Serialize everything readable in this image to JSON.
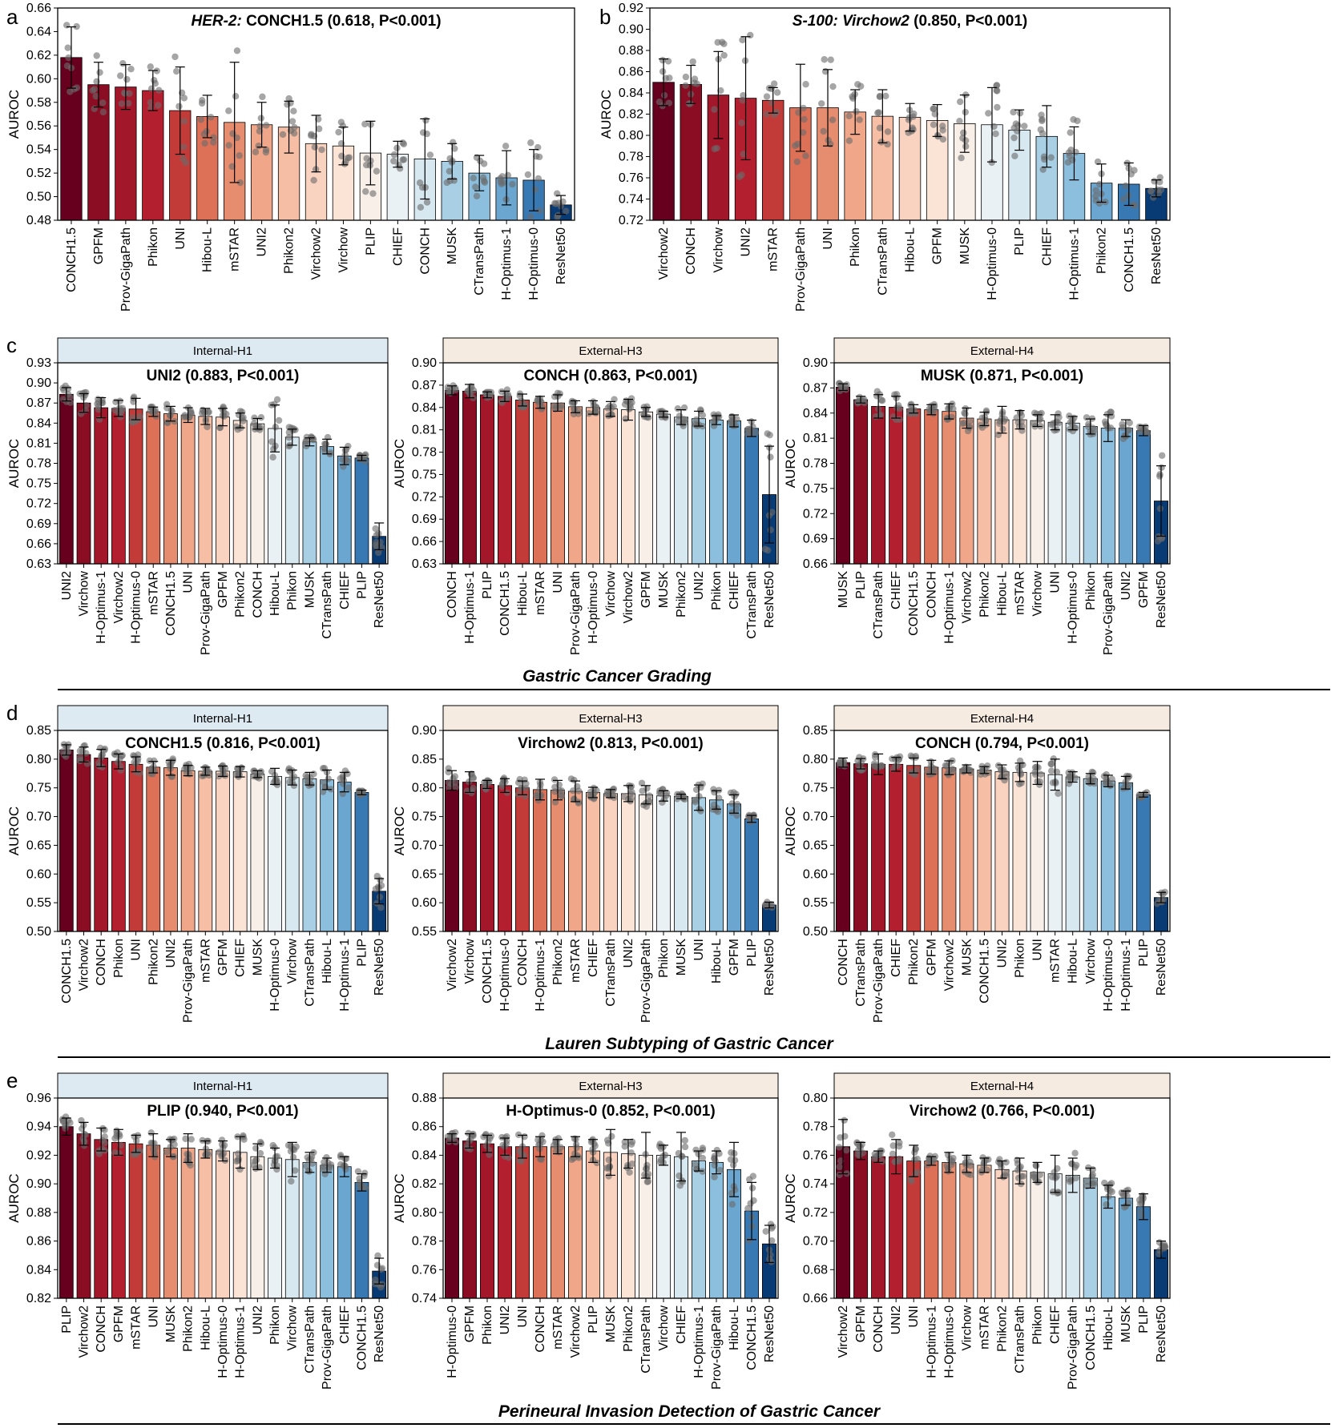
{
  "palette_21": [
    "#67001f",
    "#8b0d24",
    "#a3172b",
    "#b41f2f",
    "#c33b39",
    "#d05946",
    "#dc7158",
    "#e68c6f",
    "#f0a689",
    "#f6bea4",
    "#f9d3c0",
    "#fbe3d6",
    "#f8efe9",
    "#eaf1f5",
    "#d8e8f1",
    "#c2dcec",
    "#a9cfe5",
    "#8cbfdd",
    "#6aa6cf",
    "#3979b3",
    "#083a74"
  ],
  "colors": {
    "strip_internal": "#deeaf2",
    "strip_external": "#f6ebe1",
    "axis": "#000000",
    "dot": "#6b6b6b"
  },
  "sections": [
    "Gastric Cancer Grading",
    "Lauren Subtyping of Gastric Cancer",
    "Perineural Invasion Detection of Gastric Cancer"
  ],
  "chart_data": [
    {
      "id": "a",
      "panel_letter": "a",
      "type": "bar",
      "title_prefix": "HER-2:",
      "title_main": " CONCH1.5 (0.618, P<0.001)",
      "ylabel": "AUROC",
      "ylim": [
        0.48,
        0.66
      ],
      "yticks": [
        "0.48",
        "0.50",
        "0.52",
        "0.54",
        "0.56",
        "0.58",
        "0.60",
        "0.62",
        "0.64",
        "0.66"
      ],
      "categories": [
        "CONCH1.5",
        "GPFM",
        "Prov-GigaPath",
        "Phikon",
        "UNI",
        "Hibou-L",
        "mSTAR",
        "UNI2",
        "Phikon2",
        "Virchow2",
        "Virchow",
        "PLIP",
        "CHIEF",
        "CONCH",
        "MUSK",
        "CTransPath",
        "H-Optimus-1",
        "H-Optimus-0",
        "ResNet50"
      ],
      "values": [
        0.618,
        0.595,
        0.593,
        0.59,
        0.573,
        0.568,
        0.563,
        0.561,
        0.559,
        0.545,
        0.543,
        0.537,
        0.536,
        0.532,
        0.53,
        0.52,
        0.516,
        0.514,
        0.493
      ],
      "errors": [
        0.026,
        0.019,
        0.019,
        0.017,
        0.037,
        0.018,
        0.051,
        0.019,
        0.022,
        0.024,
        0.016,
        0.027,
        0.011,
        0.034,
        0.015,
        0.015,
        0.023,
        0.026,
        0.008
      ]
    },
    {
      "id": "b",
      "panel_letter": "b",
      "type": "bar",
      "title_prefix": "S-100: Virchow2",
      "title_main": " (0.850, P<0.001)",
      "ylabel": "AUROC",
      "ylim": [
        0.72,
        0.92
      ],
      "yticks": [
        "0.72",
        "0.74",
        "0.76",
        "0.78",
        "0.80",
        "0.82",
        "0.84",
        "0.86",
        "0.88",
        "0.90",
        "0.92"
      ],
      "categories": [
        "Virchow2",
        "CONCH",
        "Virchow",
        "UNI2",
        "mSTAR",
        "Prov-GigaPath",
        "UNI",
        "Phikon",
        "CTransPath",
        "Hibou-L",
        "GPFM",
        "MUSK",
        "H-Optimus-0",
        "PLIP",
        "CHIEF",
        "H-Optimus-1",
        "Phikon2",
        "CONCH1.5",
        "ResNet50"
      ],
      "values": [
        0.85,
        0.848,
        0.838,
        0.835,
        0.833,
        0.826,
        0.826,
        0.822,
        0.818,
        0.817,
        0.814,
        0.811,
        0.81,
        0.805,
        0.799,
        0.783,
        0.755,
        0.754,
        0.75
      ],
      "errors": [
        0.022,
        0.018,
        0.041,
        0.058,
        0.012,
        0.041,
        0.036,
        0.021,
        0.025,
        0.013,
        0.015,
        0.027,
        0.035,
        0.019,
        0.029,
        0.025,
        0.018,
        0.02,
        0.008
      ]
    },
    {
      "id": "c1",
      "panel_letter": "c",
      "type": "bar",
      "strip": "Internal-H1",
      "strip_kind": "internal",
      "title_main": "UNI2 (0.883, P<0.001)",
      "ylabel": "AUROC",
      "ylim": [
        0.63,
        0.93
      ],
      "yticks": [
        "0.63",
        "0.66",
        "0.69",
        "0.72",
        "0.75",
        "0.78",
        "0.81",
        "0.84",
        "0.87",
        "0.90",
        "0.93"
      ],
      "categories": [
        "UNI2",
        "Virchow",
        "H-Optimus-1",
        "Virchow2",
        "H-Optimus-0",
        "mSTAR",
        "CONCH1.5",
        "UNI",
        "Prov-GigaPath",
        "GPFM",
        "Phikon2",
        "CONCH",
        "Hibou-L",
        "Phikon",
        "MUSK",
        "CTransPath",
        "CHIEF",
        "PLIP",
        "ResNet50"
      ],
      "values": [
        0.883,
        0.87,
        0.863,
        0.862,
        0.861,
        0.857,
        0.854,
        0.852,
        0.85,
        0.849,
        0.844,
        0.839,
        0.832,
        0.819,
        0.812,
        0.805,
        0.791,
        0.788,
        0.671
      ],
      "errors": [
        0.01,
        0.014,
        0.015,
        0.012,
        0.016,
        0.007,
        0.011,
        0.011,
        0.012,
        0.013,
        0.011,
        0.008,
        0.035,
        0.012,
        0.006,
        0.011,
        0.013,
        0.004,
        0.02
      ]
    },
    {
      "id": "c2",
      "panel_letter": "",
      "type": "bar",
      "strip": "External-H3",
      "strip_kind": "external",
      "title_main": "CONCH (0.863, P<0.001)",
      "ylabel": "AUROC",
      "ylim": [
        0.63,
        0.9
      ],
      "yticks": [
        "0.63",
        "0.66",
        "0.69",
        "0.72",
        "0.75",
        "0.78",
        "0.81",
        "0.84",
        "0.87",
        "0.90"
      ],
      "categories": [
        "CONCH",
        "H-Optimus-1",
        "PLIP",
        "CONCH1.5",
        "Hibou-L",
        "mSTAR",
        "UNI",
        "Prov-GigaPath",
        "H-Optimus-0",
        "Virchow",
        "Virchow2",
        "GPFM",
        "MUSK",
        "Phikon2",
        "UNI2",
        "Phikon",
        "CHIEF",
        "CTransPath",
        "ResNet50"
      ],
      "values": [
        0.863,
        0.862,
        0.857,
        0.855,
        0.85,
        0.847,
        0.846,
        0.841,
        0.84,
        0.838,
        0.837,
        0.834,
        0.831,
        0.827,
        0.825,
        0.823,
        0.822,
        0.812,
        0.723
      ],
      "errors": [
        0.006,
        0.009,
        0.004,
        0.007,
        0.008,
        0.008,
        0.011,
        0.008,
        0.009,
        0.01,
        0.014,
        0.006,
        0.004,
        0.01,
        0.01,
        0.006,
        0.008,
        0.011,
        0.065
      ]
    },
    {
      "id": "c3",
      "panel_letter": "",
      "type": "bar",
      "strip": "External-H4",
      "strip_kind": "external",
      "title_main": "MUSK (0.871, P<0.001)",
      "ylabel": "AUROC",
      "ylim": [
        0.66,
        0.9
      ],
      "yticks": [
        "0.66",
        "0.69",
        "0.72",
        "0.75",
        "0.78",
        "0.81",
        "0.84",
        "0.87",
        "0.90"
      ],
      "categories": [
        "MUSK",
        "PLIP",
        "CTransPath",
        "CHIEF",
        "CONCH1.5",
        "CONCH",
        "H-Optimus-1",
        "Virchow2",
        "Phikon2",
        "Hibou-L",
        "mSTAR",
        "Virchow",
        "UNI",
        "H-Optimus-0",
        "Phikon",
        "Prov-GigaPath",
        "UNI2",
        "GPFM",
        "ResNet50"
      ],
      "values": [
        0.871,
        0.856,
        0.848,
        0.847,
        0.845,
        0.844,
        0.842,
        0.834,
        0.833,
        0.832,
        0.832,
        0.831,
        0.829,
        0.828,
        0.824,
        0.822,
        0.822,
        0.819,
        0.735
      ],
      "errors": [
        0.004,
        0.004,
        0.014,
        0.013,
        0.005,
        0.006,
        0.009,
        0.012,
        0.008,
        0.016,
        0.011,
        0.007,
        0.009,
        0.008,
        0.009,
        0.016,
        0.01,
        0.006,
        0.042
      ]
    },
    {
      "id": "d1",
      "panel_letter": "d",
      "type": "bar",
      "strip": "Internal-H1",
      "strip_kind": "internal",
      "title_main": "CONCH1.5 (0.816, P<0.001)",
      "ylabel": "AUROC",
      "ylim": [
        0.5,
        0.85
      ],
      "yticks": [
        "0.50",
        "0.55",
        "0.60",
        "0.65",
        "0.70",
        "0.75",
        "0.80",
        "0.85"
      ],
      "categories": [
        "CONCH1.5",
        "Virchow2",
        "CONCH",
        "Phikon",
        "UNI",
        "Phikon2",
        "UNI2",
        "Prov-GigaPath",
        "mSTAR",
        "GPFM",
        "CHIEF",
        "MUSK",
        "H-Optimus-0",
        "Virchow",
        "CTransPath",
        "Hibou-L",
        "H-Optimus-1",
        "PLIP",
        "ResNet50"
      ],
      "values": [
        0.816,
        0.808,
        0.802,
        0.796,
        0.791,
        0.786,
        0.785,
        0.78,
        0.779,
        0.779,
        0.778,
        0.774,
        0.77,
        0.768,
        0.766,
        0.764,
        0.76,
        0.742,
        0.57
      ],
      "errors": [
        0.009,
        0.013,
        0.015,
        0.013,
        0.013,
        0.01,
        0.013,
        0.009,
        0.007,
        0.009,
        0.009,
        0.006,
        0.014,
        0.013,
        0.011,
        0.017,
        0.017,
        0.004,
        0.022
      ]
    },
    {
      "id": "d2",
      "panel_letter": "",
      "type": "bar",
      "strip": "External-H3",
      "strip_kind": "external",
      "title_main": "Virchow2 (0.813, P<0.001)",
      "ylabel": "AUROC",
      "ylim": [
        0.55,
        0.9
      ],
      "yticks": [
        "0.55",
        "0.60",
        "0.65",
        "0.70",
        "0.75",
        "0.80",
        "0.85",
        "0.90"
      ],
      "categories": [
        "Virchow2",
        "Virchow",
        "CONCH1.5",
        "H-Optimus-0",
        "CONCH",
        "H-Optimus-1",
        "Phikon2",
        "mSTAR",
        "CHIEF",
        "CTransPath",
        "UNI2",
        "Prov-GigaPath",
        "Phikon",
        "MUSK",
        "UNI",
        "Hibou-L",
        "GPFM",
        "PLIP",
        "ResNet50"
      ],
      "values": [
        0.813,
        0.81,
        0.806,
        0.804,
        0.8,
        0.797,
        0.796,
        0.794,
        0.792,
        0.79,
        0.79,
        0.788,
        0.786,
        0.785,
        0.783,
        0.779,
        0.772,
        0.746,
        0.596
      ],
      "errors": [
        0.017,
        0.018,
        0.007,
        0.012,
        0.012,
        0.018,
        0.017,
        0.018,
        0.009,
        0.007,
        0.014,
        0.016,
        0.009,
        0.004,
        0.022,
        0.016,
        0.016,
        0.006,
        0.005
      ]
    },
    {
      "id": "d3",
      "panel_letter": "",
      "type": "bar",
      "strip": "External-H4",
      "strip_kind": "external",
      "title_main": "CONCH (0.794, P<0.001)",
      "ylabel": "AUROC",
      "ylim": [
        0.5,
        0.85
      ],
      "yticks": [
        "0.50",
        "0.55",
        "0.60",
        "0.65",
        "0.70",
        "0.75",
        "0.80",
        "0.85"
      ],
      "categories": [
        "CONCH",
        "CTransPath",
        "Prov-GigaPath",
        "CHIEF",
        "Phikon2",
        "GPFM",
        "Virchow2",
        "MUSK",
        "CONCH1.5",
        "UNI2",
        "Phikon",
        "UNI",
        "mSTAR",
        "Hibou-L",
        "Virchow",
        "H-Optimus-0",
        "H-Optimus-1",
        "PLIP",
        "ResNet50"
      ],
      "values": [
        0.794,
        0.792,
        0.791,
        0.791,
        0.789,
        0.786,
        0.785,
        0.783,
        0.781,
        0.778,
        0.777,
        0.776,
        0.773,
        0.769,
        0.766,
        0.762,
        0.759,
        0.738,
        0.559
      ],
      "errors": [
        0.008,
        0.009,
        0.018,
        0.012,
        0.013,
        0.012,
        0.012,
        0.007,
        0.006,
        0.012,
        0.016,
        0.02,
        0.027,
        0.009,
        0.009,
        0.01,
        0.011,
        0.004,
        0.009
      ]
    },
    {
      "id": "e1",
      "panel_letter": "e",
      "type": "bar",
      "strip": "Internal-H1",
      "strip_kind": "internal",
      "title_main": "PLIP (0.940, P<0.001)",
      "ylabel": "AUROC",
      "ylim": [
        0.82,
        0.96
      ],
      "yticks": [
        "0.82",
        "0.84",
        "0.86",
        "0.88",
        "0.90",
        "0.92",
        "0.94",
        "0.96"
      ],
      "categories": [
        "PLIP",
        "Virchow2",
        "CONCH",
        "GPFM",
        "mSTAR",
        "UNI",
        "MUSK",
        "Phikon2",
        "Hibou-L",
        "H-Optimus-0",
        "H-Optimus-1",
        "UNI2",
        "Phikon",
        "Virchow",
        "CTransPath",
        "Prov-GigaPath",
        "CHIEF",
        "CONCH1.5",
        "ResNet50"
      ],
      "values": [
        0.94,
        0.935,
        0.931,
        0.929,
        0.928,
        0.927,
        0.925,
        0.925,
        0.924,
        0.923,
        0.922,
        0.919,
        0.918,
        0.917,
        0.915,
        0.913,
        0.912,
        0.901,
        0.839
      ],
      "errors": [
        0.006,
        0.008,
        0.008,
        0.009,
        0.006,
        0.008,
        0.006,
        0.01,
        0.006,
        0.007,
        0.011,
        0.009,
        0.007,
        0.012,
        0.007,
        0.005,
        0.007,
        0.006,
        0.009
      ]
    },
    {
      "id": "e2",
      "panel_letter": "",
      "type": "bar",
      "strip": "External-H3",
      "strip_kind": "external",
      "title_main": "H-Optimus-0 (0.852, P<0.001)",
      "ylabel": "AUROC",
      "ylim": [
        0.74,
        0.88
      ],
      "yticks": [
        "0.74",
        "0.76",
        "0.78",
        "0.80",
        "0.82",
        "0.84",
        "0.86",
        "0.88"
      ],
      "categories": [
        "H-Optimus-0",
        "GPFM",
        "Phikon",
        "UNI2",
        "UNI",
        "CONCH",
        "mSTAR",
        "Virchow2",
        "PLIP",
        "MUSK",
        "Phikon2",
        "CTransPath",
        "Virchow",
        "CHIEF",
        "H-Optimus-1",
        "Prov-GigaPath",
        "Hibou-L",
        "CONCH1.5",
        "ResNet50"
      ],
      "values": [
        0.852,
        0.85,
        0.848,
        0.846,
        0.846,
        0.846,
        0.846,
        0.846,
        0.843,
        0.842,
        0.841,
        0.84,
        0.84,
        0.839,
        0.836,
        0.835,
        0.83,
        0.801,
        0.778
      ],
      "errors": [
        0.003,
        0.005,
        0.006,
        0.006,
        0.008,
        0.007,
        0.005,
        0.007,
        0.008,
        0.016,
        0.01,
        0.016,
        0.007,
        0.017,
        0.007,
        0.008,
        0.019,
        0.02,
        0.013
      ]
    },
    {
      "id": "e3",
      "panel_letter": "",
      "type": "bar",
      "strip": "External-H4",
      "strip_kind": "external",
      "title_main": "Virchow2 (0.766, P<0.001)",
      "ylabel": "AUROC",
      "ylim": [
        0.66,
        0.8
      ],
      "yticks": [
        "0.66",
        "0.68",
        "0.70",
        "0.72",
        "0.74",
        "0.76",
        "0.78",
        "0.80"
      ],
      "categories": [
        "Virchow2",
        "GPFM",
        "CONCH",
        "UNI2",
        "UNI",
        "H-Optimus-1",
        "H-Optimus-0",
        "Virchow",
        "mSTAR",
        "Phikon2",
        "CTransPath",
        "Phikon",
        "CHIEF",
        "Prov-GigaPath",
        "CONCH1.5",
        "Hibou-L",
        "MUSK",
        "PLIP",
        "ResNet50"
      ],
      "values": [
        0.766,
        0.763,
        0.759,
        0.759,
        0.756,
        0.756,
        0.755,
        0.754,
        0.753,
        0.75,
        0.749,
        0.748,
        0.747,
        0.746,
        0.744,
        0.731,
        0.73,
        0.724,
        0.694
      ],
      "errors": [
        0.019,
        0.006,
        0.004,
        0.012,
        0.011,
        0.003,
        0.007,
        0.006,
        0.005,
        0.006,
        0.009,
        0.007,
        0.013,
        0.012,
        0.007,
        0.008,
        0.005,
        0.009,
        0.006
      ]
    }
  ]
}
